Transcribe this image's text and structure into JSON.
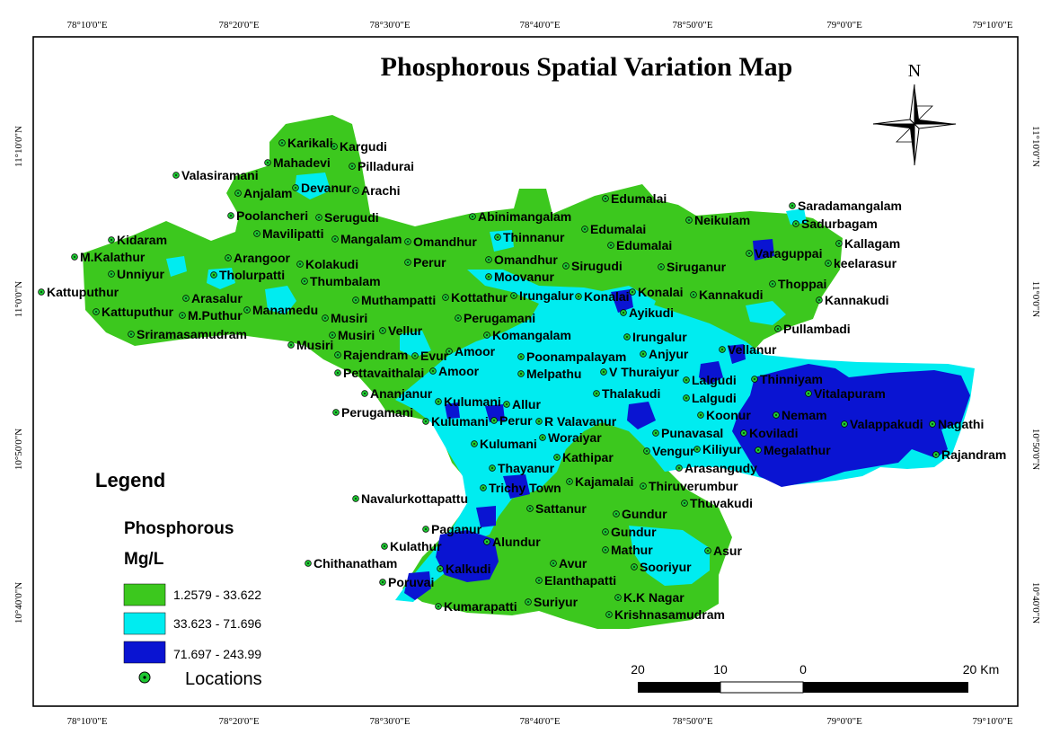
{
  "title": "Phosphorous Spatial Variation Map",
  "north_label": "N",
  "graticule": {
    "top": [
      "78°10'0\"E",
      "78°20'0\"E",
      "78°30'0\"E",
      "78°40'0\"E",
      "78°50'0\"E",
      "79°0'0\"E",
      "79°10'0\"E"
    ],
    "bottom": [
      "78°10'0\"E",
      "78°20'0\"E",
      "78°30'0\"E",
      "78°40'0\"E",
      "78°50'0\"E",
      "79°0'0\"E",
      "79°10'0\"E"
    ],
    "left": [
      "11°10'0\"N",
      "11°0'0\"N",
      "10°50'0\"N",
      "10°40'0\"N"
    ],
    "right": [
      "11°10'0\"N",
      "11°0'0\"N",
      "10°50'0\"N",
      "10°40'0\"N"
    ]
  },
  "legend": {
    "heading": "Legend",
    "parameter": "Phosphorous",
    "unit": "Mg/L",
    "classes": [
      {
        "label": "1.2579 - 33.622",
        "color": "#3cc81e"
      },
      {
        "label": "33.623 - 71.696",
        "color": "#00ecf0"
      },
      {
        "label": "71.697 - 243.99",
        "color": "#0a14d2"
      }
    ],
    "locations_label": "Locations",
    "marker_color": "#1ec832"
  },
  "scale_bar": {
    "labels": [
      "20",
      "10",
      "0",
      "20 Km"
    ]
  },
  "places": [
    {
      "name": "Karikali"
    },
    {
      "name": "Kargudi"
    },
    {
      "name": "Mahadevi"
    },
    {
      "name": "Pilladurai"
    },
    {
      "name": "Valasiramani"
    },
    {
      "name": "Devanur"
    },
    {
      "name": "Arachi"
    },
    {
      "name": "Anjalam"
    },
    {
      "name": "Poolancheri"
    },
    {
      "name": "Serugudi"
    },
    {
      "name": "Mavilipatti"
    },
    {
      "name": "Mangalam"
    },
    {
      "name": "Omandhur"
    },
    {
      "name": "Kidaram"
    },
    {
      "name": "M.Kalathur"
    },
    {
      "name": "Arangoor"
    },
    {
      "name": "Kolakudi"
    },
    {
      "name": "Perur"
    },
    {
      "name": "Unniyur"
    },
    {
      "name": "Tholurpatti"
    },
    {
      "name": "Thumbalam"
    },
    {
      "name": "Kattuputhur"
    },
    {
      "name": "Arasalur"
    },
    {
      "name": "Muthampatti"
    },
    {
      "name": "Kattuputhur"
    },
    {
      "name": "M.Puthur"
    },
    {
      "name": "Manamedu"
    },
    {
      "name": "Musiri"
    },
    {
      "name": "Sriramasamudram"
    },
    {
      "name": "Vellur"
    },
    {
      "name": "Musiri"
    },
    {
      "name": "Musiri"
    },
    {
      "name": "Rajendram"
    },
    {
      "name": "Evur"
    },
    {
      "name": "Pettavaithalai"
    },
    {
      "name": "Amoor"
    },
    {
      "name": "Ananjanur"
    },
    {
      "name": "Perugamani"
    },
    {
      "name": "Abinimangalam"
    },
    {
      "name": "Edumalai"
    },
    {
      "name": "Edumalai"
    },
    {
      "name": "Edumalai"
    },
    {
      "name": "Thinnanur"
    },
    {
      "name": "Omandhur"
    },
    {
      "name": "Sirugudi"
    },
    {
      "name": "Moovanur"
    },
    {
      "name": "Kottathur"
    },
    {
      "name": "Irungalur"
    },
    {
      "name": "Konalai"
    },
    {
      "name": "Konalai"
    },
    {
      "name": "Perugamani"
    },
    {
      "name": "Ayikudi"
    },
    {
      "name": "Komangalam"
    },
    {
      "name": "Amoor"
    },
    {
      "name": "Poonampalayam"
    },
    {
      "name": "Irungalur"
    },
    {
      "name": "Anjyur"
    },
    {
      "name": "Melpathu"
    },
    {
      "name": "V Thuraiyur"
    },
    {
      "name": "Neikulam"
    },
    {
      "name": "Saradamangalam"
    },
    {
      "name": "Sadurbagam"
    },
    {
      "name": "Kallagam"
    },
    {
      "name": "Varaguppai"
    },
    {
      "name": "keelarasur"
    },
    {
      "name": "Siruganur"
    },
    {
      "name": "Thoppai"
    },
    {
      "name": "Kannakudi"
    },
    {
      "name": "Kannakudi"
    },
    {
      "name": "Pullambadi"
    },
    {
      "name": "Vellanur"
    },
    {
      "name": "Lalgudi"
    },
    {
      "name": "Thinniyam"
    },
    {
      "name": "Vitalapuram"
    },
    {
      "name": "Lalgudi"
    },
    {
      "name": "Thalakudi"
    },
    {
      "name": "Koonur"
    },
    {
      "name": "Nemam"
    },
    {
      "name": "Valappakudi"
    },
    {
      "name": "Nagathi"
    },
    {
      "name": "Rajandram"
    },
    {
      "name": "Punavasal"
    },
    {
      "name": "Koviladi"
    },
    {
      "name": "Kiliyur"
    },
    {
      "name": "Megalathur"
    },
    {
      "name": "Kulumani"
    },
    {
      "name": "Allur"
    },
    {
      "name": "Kulumani"
    },
    {
      "name": "Perur"
    },
    {
      "name": "R Valavanur"
    },
    {
      "name": "Woraiyar"
    },
    {
      "name": "Kulumani"
    },
    {
      "name": "Vengur"
    },
    {
      "name": "Kathipar"
    },
    {
      "name": "Arasangudy"
    },
    {
      "name": "Thayanur"
    },
    {
      "name": "Trichy Town"
    },
    {
      "name": "Kajamalai"
    },
    {
      "name": "Thiruverumbur"
    },
    {
      "name": "Navalurkottapattu"
    },
    {
      "name": "Sattanur"
    },
    {
      "name": "Thuvakudi"
    },
    {
      "name": "Gundur"
    },
    {
      "name": "Gundur"
    },
    {
      "name": "Paganur"
    },
    {
      "name": "Alundur"
    },
    {
      "name": "Kulathur"
    },
    {
      "name": "Mathur"
    },
    {
      "name": "Asur"
    },
    {
      "name": "Chithanatham"
    },
    {
      "name": "Kalkudi"
    },
    {
      "name": "Avur"
    },
    {
      "name": "Sooriyur"
    },
    {
      "name": "Elanthapatti"
    },
    {
      "name": "Poruvai"
    },
    {
      "name": "K.K Nagar"
    },
    {
      "name": "Kumarapatti"
    },
    {
      "name": "Suriyur"
    },
    {
      "name": "Krishnasamudram"
    }
  ]
}
